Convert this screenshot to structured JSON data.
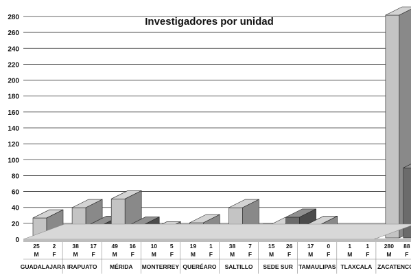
{
  "chart_data": {
    "type": "bar",
    "title": "Investigadores por unidad",
    "xlabel": "",
    "ylabel": "",
    "ylim": [
      0,
      280
    ],
    "yticks": [
      0,
      20,
      40,
      60,
      80,
      100,
      120,
      140,
      160,
      180,
      200,
      220,
      240,
      260,
      280
    ],
    "grid": true,
    "categories": [
      "GUADALAJARA",
      "IRAPUATO",
      "MÉRIDA",
      "MONTERREY",
      "QUERÉARO",
      "SALTILLO",
      "SEDE SUR",
      "TAMAULIPAS",
      "TLAXCALA",
      "ZACATENCO"
    ],
    "sub_labels": [
      "M",
      "F"
    ],
    "series": [
      {
        "values": [
          25,
          38,
          49,
          10,
          19,
          38,
          15,
          17,
          1,
          280
        ]
      },
      {
        "values": [
          2,
          17,
          16,
          5,
          1,
          7,
          26,
          0,
          1,
          88
        ]
      }
    ],
    "colors": [
      "#c4c4c4",
      "#6b6b6b",
      "#222222"
    ]
  }
}
